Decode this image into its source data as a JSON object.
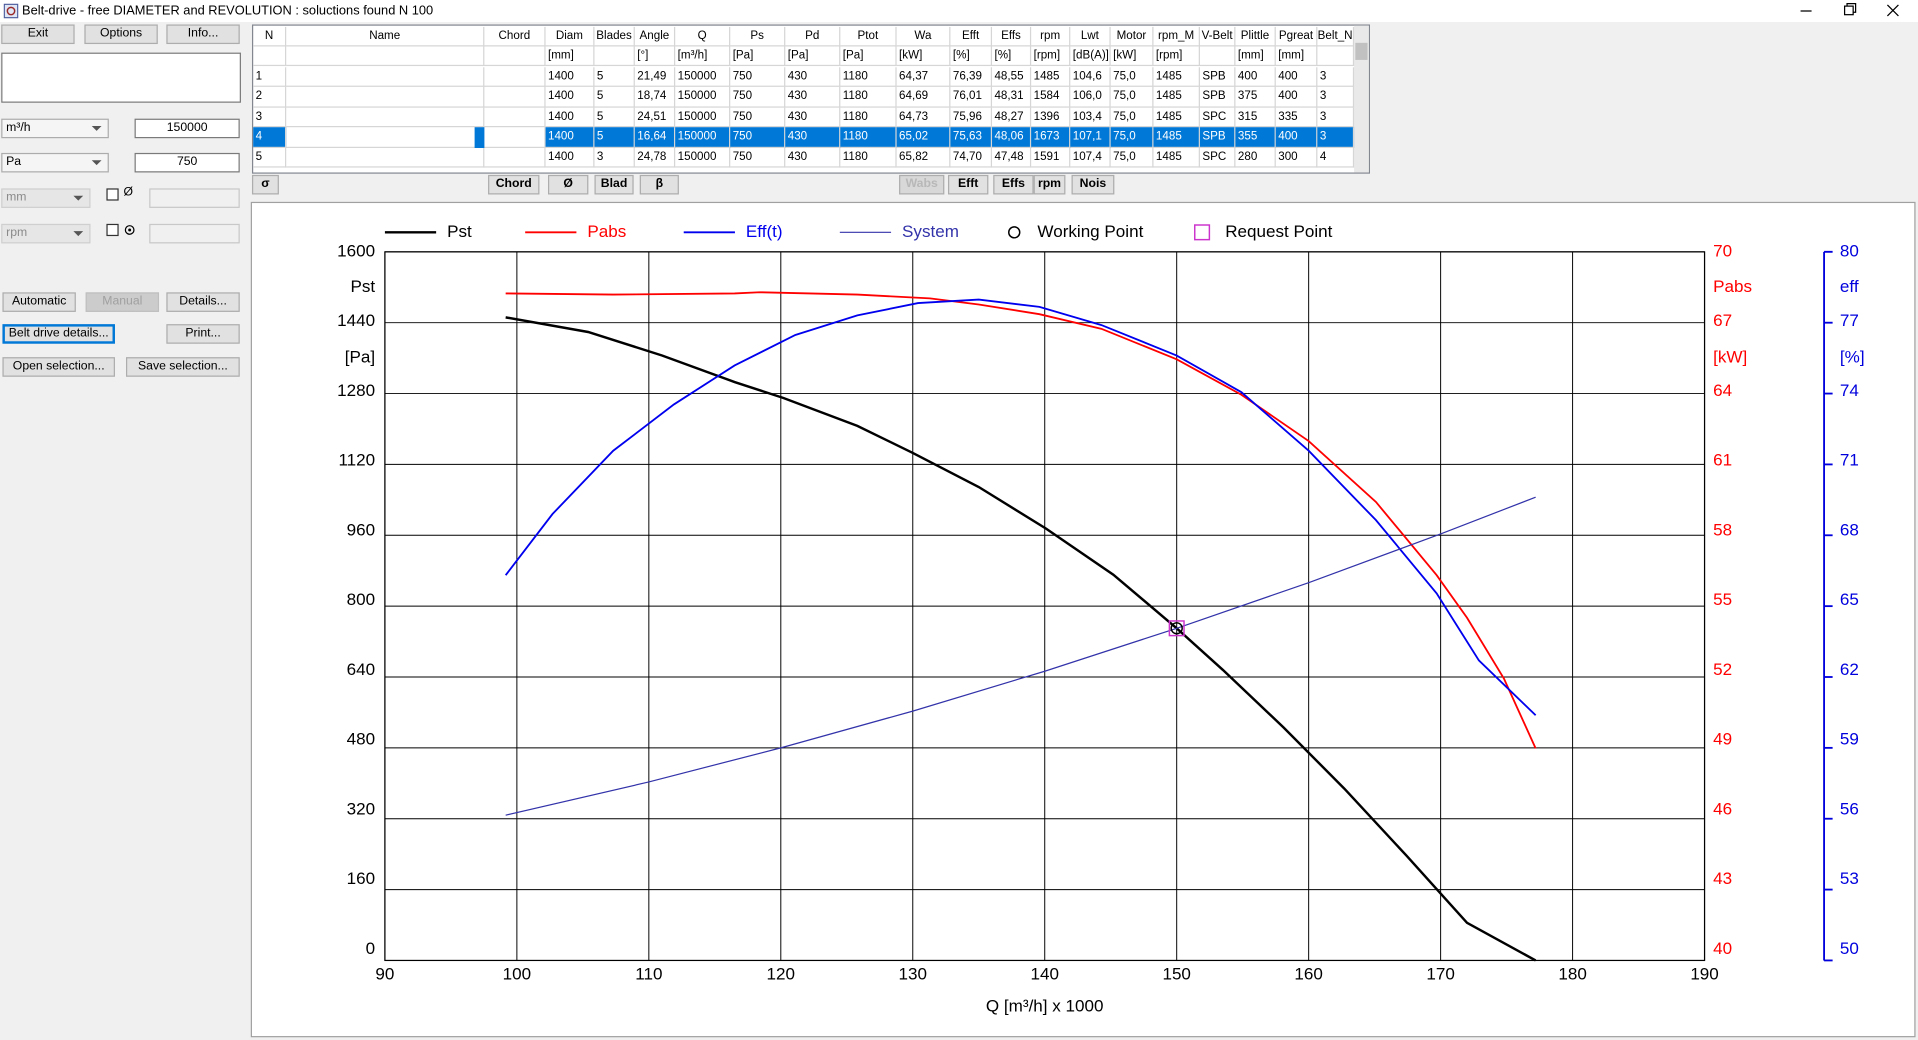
{
  "window": {
    "title": "Belt-drive - free DIAMETER and REVOLUTION : soluctions found N 100"
  },
  "toolbar": {
    "exit": "Exit",
    "options": "Options",
    "info": "Info..."
  },
  "inputs": {
    "flow_unit": "m³/h",
    "flow_value": "150000",
    "pressure_unit": "Pa",
    "pressure_value": "750",
    "diameter_unit": "mm",
    "diameter_check": "Ø",
    "speed_unit": "rpm"
  },
  "buttons": {
    "automatic": "Automatic",
    "manual": "Manual",
    "details": "Details...",
    "belt_drive_details": "Belt drive details...",
    "print": "Print...",
    "open_selection": "Open selection...",
    "save_selection": "Save selection..."
  },
  "table": {
    "columns": [
      "N",
      "Name",
      "Chord",
      "Diam",
      "Blades",
      "Angle",
      "Q",
      "Ps",
      "Pd",
      "Ptot",
      "Wa",
      "Efft",
      "Effs",
      "rpm",
      "Lwt",
      "Motor",
      "rpm_M",
      "V-Belt",
      "Plittle",
      "Pgreat",
      "Belt_N"
    ],
    "units": [
      null,
      null,
      null,
      "[mm]",
      null,
      "[°]",
      "[m³/h]",
      "[Pa]",
      "[Pa]",
      "[Pa]",
      "[kW]",
      "[%]",
      "[%]",
      "[rpm]",
      "[dB(A)]",
      "[kW]",
      "[rpm]",
      null,
      "[mm]",
      "[mm]",
      null
    ],
    "rows": [
      [
        "1",
        null,
        null,
        "1400",
        "5",
        "21,49",
        "150000",
        "750",
        "430",
        "1180",
        "64,37",
        "76,39",
        "48,55",
        "1485",
        "104,6",
        "75,0",
        "1485",
        "SPB",
        "400",
        "400",
        "3"
      ],
      [
        "2",
        null,
        null,
        "1400",
        "5",
        "18,74",
        "150000",
        "750",
        "430",
        "1180",
        "64,69",
        "76,01",
        "48,31",
        "1584",
        "106,0",
        "75,0",
        "1485",
        "SPB",
        "375",
        "400",
        "3"
      ],
      [
        "3",
        null,
        null,
        "1400",
        "5",
        "24,51",
        "150000",
        "750",
        "430",
        "1180",
        "64,73",
        "75,96",
        "48,27",
        "1396",
        "103,4",
        "75,0",
        "1485",
        "SPC",
        "315",
        "335",
        "3"
      ],
      [
        "4",
        null,
        null,
        "1400",
        "5",
        "16,64",
        "150000",
        "750",
        "430",
        "1180",
        "65,02",
        "75,63",
        "48,06",
        "1673",
        "107,1",
        "75,0",
        "1485",
        "SPB",
        "355",
        "400",
        "3"
      ],
      [
        "5",
        null,
        null,
        "1400",
        "3",
        "24,78",
        "150000",
        "750",
        "430",
        "1180",
        "65,82",
        "74,70",
        "47,48",
        "1591",
        "107,4",
        "75,0",
        "1485",
        "SPC",
        "280",
        "300",
        "4"
      ]
    ],
    "selected_row": 3
  },
  "table_buttons": [
    "σ",
    "Chord",
    "Ø",
    "Blad",
    "β",
    "Wabs",
    "Efft",
    "Effs",
    "rpm",
    "Nois"
  ],
  "chart_data": {
    "type": "line",
    "xlabel": "Q [m³/h] x 1000",
    "xlim": [
      90,
      190
    ],
    "xticks": [
      90,
      100,
      110,
      120,
      130,
      140,
      150,
      160,
      170,
      180,
      190
    ],
    "ylim": [
      0,
      1600
    ],
    "yticks": [
      0,
      160,
      320,
      480,
      640,
      800,
      960,
      1120,
      1280,
      1440,
      1600
    ],
    "ylabel": "Pst",
    "yunit": "[Pa]",
    "y2lim": [
      40,
      70
    ],
    "y2ticks": [
      40,
      43,
      46,
      49,
      52,
      55,
      58,
      61,
      64,
      67,
      70
    ],
    "y2label": "Pabs",
    "y2unit": "[kW]",
    "y2color": "#ff0000",
    "y3lim": [
      50,
      80
    ],
    "y3ticks": [
      50,
      53,
      56,
      59,
      62,
      65,
      68,
      71,
      74,
      77,
      80
    ],
    "y3label": "eff",
    "y3unit": "[%]",
    "y3color": "#0000dd",
    "grid": true,
    "legend": "top",
    "series": [
      {
        "name": "Pst",
        "color": "#000000",
        "line_width": 2,
        "axis": "y",
        "x": [
          99.15,
          105.4,
          111.0,
          116.5,
          120.2,
          125.8,
          130.0,
          135.0,
          140.1,
          145.2,
          150.0,
          153.5,
          158.1,
          162.7,
          167.4,
          172.0,
          177.2
        ],
        "values": [
          1452,
          1419,
          1366,
          1306,
          1270,
          1207,
          1146,
          1069,
          975,
          871,
          750,
          656,
          526,
          388,
          237,
          85,
          0
        ]
      },
      {
        "name": "Pabs",
        "color": "#ff0000",
        "line_width": 1.5,
        "axis": "y2",
        "x": [
          99.15,
          107.3,
          116.5,
          118.4,
          125.8,
          131.3,
          135.0,
          139.6,
          144.3,
          150.0,
          154.9,
          160.0,
          165.1,
          169.7,
          172.0,
          174.8,
          177.2
        ],
        "values": [
          68.24,
          68.19,
          68.24,
          68.29,
          68.19,
          68.03,
          67.77,
          67.36,
          66.74,
          65.45,
          63.95,
          61.99,
          59.41,
          56.31,
          54.51,
          51.93,
          48.98
        ]
      },
      {
        "name": "Eff(t)",
        "color": "#0000ee",
        "line_width": 1.5,
        "axis": "y3",
        "x": [
          99.15,
          102.7,
          107.3,
          111.9,
          116.5,
          121.1,
          125.8,
          130.4,
          135.0,
          139.6,
          144.3,
          150.0,
          154.9,
          160.0,
          165.1,
          169.7,
          172.9,
          177.2
        ],
        "values": [
          66.31,
          68.9,
          71.58,
          73.54,
          75.19,
          76.48,
          77.31,
          77.83,
          77.98,
          77.67,
          76.9,
          75.61,
          74.06,
          71.58,
          68.64,
          65.54,
          62.7,
          60.38
        ]
      },
      {
        "name": "System",
        "color": "#3333aa",
        "line_width": 1,
        "axis": "y",
        "x": [
          99.15,
          110,
          120,
          130,
          140,
          150,
          160,
          170,
          177.2
        ],
        "values": [
          328,
          403,
          480,
          563,
          653,
          750,
          853,
          963,
          1046
        ]
      },
      {
        "name": "Working Point",
        "color": "#000000",
        "marker": "circle",
        "axis": "y",
        "x": [
          150
        ],
        "values": [
          750
        ]
      },
      {
        "name": "Request Point",
        "color": "#cc33cc",
        "marker": "square",
        "axis": "y",
        "x": [
          150
        ],
        "values": [
          750
        ]
      }
    ]
  }
}
